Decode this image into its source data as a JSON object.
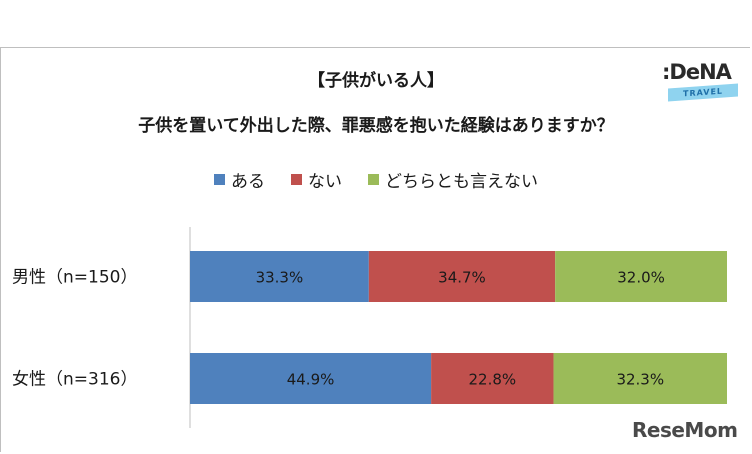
{
  "header": {
    "title_line1": "【子供がいる人】",
    "title_line2": "子供を置いて外出した際、罪悪感を抱いた経験はありますか？"
  },
  "logo": {
    "word": ":DeNA",
    "band": "TRAVEL"
  },
  "watermark": "ReseMom",
  "colors": {
    "ある": "#4f81bd",
    "ない": "#c0504d",
    "どちらとも言えない": "#9bbb59",
    "axis": "#bfbfbf",
    "label": "#1a1a1a"
  },
  "chart_data": {
    "type": "bar",
    "orientation": "horizontal",
    "stacked": true,
    "percent": true,
    "title": "【子供がいる人】 子供を置いて外出した際、罪悪感を抱いた経験はありますか？",
    "legend_position": "top",
    "categories": [
      "男性（n=150）",
      "女性（n=316）"
    ],
    "series": [
      {
        "name": "ある",
        "values": [
          33.3,
          44.9
        ],
        "labels": [
          "33.3%",
          "44.9%"
        ]
      },
      {
        "name": "ない",
        "values": [
          34.7,
          22.8
        ],
        "labels": [
          "34.7%",
          "22.8%"
        ]
      },
      {
        "name": "どちらとも言えない",
        "values": [
          32.0,
          32.3
        ],
        "labels": [
          "32.0%",
          "32.3%"
        ]
      }
    ],
    "xlim": [
      0,
      100
    ],
    "grid": false
  }
}
